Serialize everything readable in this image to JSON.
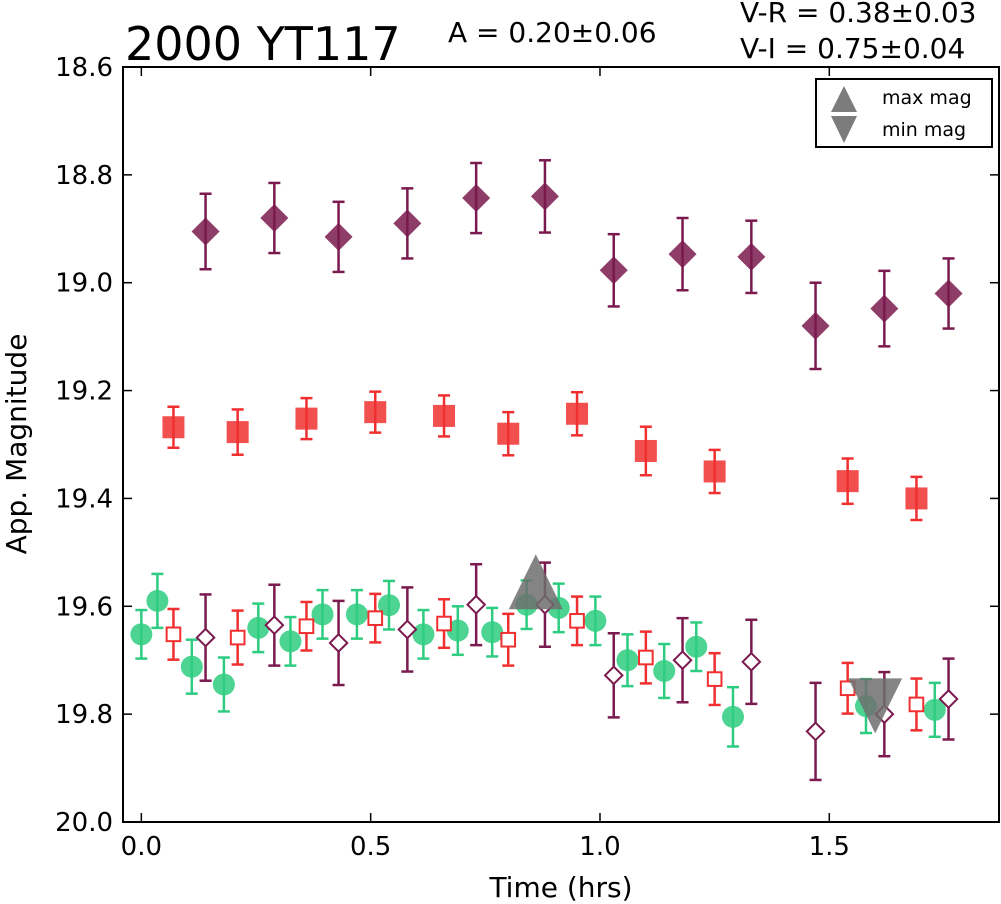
{
  "header": {
    "title": "2000 YT117",
    "amplitude": "A  = 0.20±0.06",
    "color_vr": "V-R = 0.38±0.03",
    "color_vi": "V-I  = 0.75±0.04"
  },
  "chart_data": {
    "type": "scatter",
    "title": "2000 YT117",
    "xlabel": "Time (hrs)",
    "ylabel": "App. Magnitude",
    "xlim": [
      -0.04,
      1.87
    ],
    "ylim": [
      20.0,
      18.6
    ],
    "y_inverted": true,
    "grid": false,
    "xticks": [
      "0.0",
      "0.5",
      "1.0",
      "1.5"
    ],
    "xtick_values": [
      0.0,
      0.5,
      1.0,
      1.5
    ],
    "yticks": [
      "18.6",
      "18.8",
      "19.0",
      "19.2",
      "19.4",
      "19.6",
      "19.8",
      "20.0"
    ],
    "ytick_values": [
      18.6,
      18.8,
      19.0,
      19.2,
      19.4,
      19.6,
      19.8,
      20.0
    ],
    "legend": {
      "placement": "top-right",
      "entries": [
        {
          "label": "max mag",
          "marker": "triangle-up",
          "color": "#6e6e6e"
        },
        {
          "label": "min mag",
          "marker": "triangle-down",
          "color": "#6e6e6e"
        }
      ]
    },
    "series": [
      {
        "marker": "diamond",
        "filled": true,
        "color": "#7a1a4e",
        "points": [
          {
            "x": 0.14,
            "y": 18.905,
            "err": 0.07
          },
          {
            "x": 0.29,
            "y": 18.88,
            "err": 0.065
          },
          {
            "x": 0.43,
            "y": 18.915,
            "err": 0.065
          },
          {
            "x": 0.58,
            "y": 18.89,
            "err": 0.065
          },
          {
            "x": 0.73,
            "y": 18.843,
            "err": 0.065
          },
          {
            "x": 0.88,
            "y": 18.84,
            "err": 0.067
          },
          {
            "x": 1.03,
            "y": 18.977,
            "err": 0.067
          },
          {
            "x": 1.18,
            "y": 18.947,
            "err": 0.067
          },
          {
            "x": 1.33,
            "y": 18.952,
            "err": 0.067
          },
          {
            "x": 1.47,
            "y": 19.08,
            "err": 0.08
          },
          {
            "x": 1.62,
            "y": 19.048,
            "err": 0.07
          },
          {
            "x": 1.76,
            "y": 19.02,
            "err": 0.065
          }
        ]
      },
      {
        "marker": "square",
        "filled": true,
        "color": "#f03030",
        "points": [
          {
            "x": 0.07,
            "y": 19.268,
            "err": 0.038
          },
          {
            "x": 0.21,
            "y": 19.277,
            "err": 0.042
          },
          {
            "x": 0.36,
            "y": 19.252,
            "err": 0.038
          },
          {
            "x": 0.51,
            "y": 19.24,
            "err": 0.038
          },
          {
            "x": 0.66,
            "y": 19.247,
            "err": 0.038
          },
          {
            "x": 0.8,
            "y": 19.28,
            "err": 0.04
          },
          {
            "x": 0.95,
            "y": 19.243,
            "err": 0.04
          },
          {
            "x": 1.1,
            "y": 19.312,
            "err": 0.045
          },
          {
            "x": 1.25,
            "y": 19.35,
            "err": 0.04
          },
          {
            "x": 1.54,
            "y": 19.368,
            "err": 0.042
          },
          {
            "x": 1.69,
            "y": 19.4,
            "err": 0.04
          }
        ]
      },
      {
        "marker": "circle",
        "filled": true,
        "color": "#2ecc80",
        "points": [
          {
            "x": 0.0,
            "y": 19.652,
            "err": 0.045
          },
          {
            "x": 0.035,
            "y": 19.59,
            "err": 0.05
          },
          {
            "x": 0.11,
            "y": 19.712,
            "err": 0.05
          },
          {
            "x": 0.18,
            "y": 19.745,
            "err": 0.05
          },
          {
            "x": 0.255,
            "y": 19.64,
            "err": 0.045
          },
          {
            "x": 0.325,
            "y": 19.665,
            "err": 0.045
          },
          {
            "x": 0.395,
            "y": 19.615,
            "err": 0.045
          },
          {
            "x": 0.47,
            "y": 19.615,
            "err": 0.045
          },
          {
            "x": 0.54,
            "y": 19.598,
            "err": 0.045
          },
          {
            "x": 0.615,
            "y": 19.652,
            "err": 0.045
          },
          {
            "x": 0.69,
            "y": 19.645,
            "err": 0.045
          },
          {
            "x": 0.765,
            "y": 19.648,
            "err": 0.045
          },
          {
            "x": 0.84,
            "y": 19.597,
            "err": 0.045
          },
          {
            "x": 0.91,
            "y": 19.603,
            "err": 0.045
          },
          {
            "x": 0.99,
            "y": 19.627,
            "err": 0.045
          },
          {
            "x": 1.06,
            "y": 19.7,
            "err": 0.048
          },
          {
            "x": 1.14,
            "y": 19.72,
            "err": 0.05
          },
          {
            "x": 1.21,
            "y": 19.675,
            "err": 0.045
          },
          {
            "x": 1.29,
            "y": 19.805,
            "err": 0.055
          },
          {
            "x": 1.58,
            "y": 19.785,
            "err": 0.05
          },
          {
            "x": 1.73,
            "y": 19.792,
            "err": 0.05
          }
        ]
      },
      {
        "marker": "square",
        "filled": false,
        "color": "#f03030",
        "points": [
          {
            "x": 0.07,
            "y": 19.652,
            "err": 0.047
          },
          {
            "x": 0.21,
            "y": 19.658,
            "err": 0.05
          },
          {
            "x": 0.36,
            "y": 19.637,
            "err": 0.045
          },
          {
            "x": 0.51,
            "y": 19.622,
            "err": 0.045
          },
          {
            "x": 0.66,
            "y": 19.632,
            "err": 0.045
          },
          {
            "x": 0.8,
            "y": 19.662,
            "err": 0.048
          },
          {
            "x": 0.95,
            "y": 19.627,
            "err": 0.045
          },
          {
            "x": 1.1,
            "y": 19.695,
            "err": 0.048
          },
          {
            "x": 1.25,
            "y": 19.735,
            "err": 0.048
          },
          {
            "x": 1.54,
            "y": 19.752,
            "err": 0.047
          },
          {
            "x": 1.69,
            "y": 19.782,
            "err": 0.048
          }
        ]
      },
      {
        "marker": "diamond",
        "filled": false,
        "color": "#7a1a4e",
        "points": [
          {
            "x": 0.14,
            "y": 19.658,
            "err": 0.08
          },
          {
            "x": 0.29,
            "y": 19.635,
            "err": 0.075
          },
          {
            "x": 0.43,
            "y": 19.668,
            "err": 0.078
          },
          {
            "x": 0.58,
            "y": 19.643,
            "err": 0.078
          },
          {
            "x": 0.73,
            "y": 19.597,
            "err": 0.075
          },
          {
            "x": 0.88,
            "y": 19.597,
            "err": 0.078
          },
          {
            "x": 1.03,
            "y": 19.728,
            "err": 0.078
          },
          {
            "x": 1.18,
            "y": 19.7,
            "err": 0.078
          },
          {
            "x": 1.33,
            "y": 19.703,
            "err": 0.078
          },
          {
            "x": 1.47,
            "y": 19.832,
            "err": 0.09
          },
          {
            "x": 1.62,
            "y": 19.8,
            "err": 0.078
          },
          {
            "x": 1.76,
            "y": 19.772,
            "err": 0.075
          }
        ]
      }
    ],
    "annotations": [
      {
        "type": "max_mag",
        "marker": "triangle-up",
        "x": 0.86,
        "y": 19.6,
        "color": "#6e6e6e"
      },
      {
        "type": "min_mag",
        "marker": "triangle-down",
        "x": 1.6,
        "y": 19.78,
        "color": "#6e6e6e"
      }
    ]
  }
}
